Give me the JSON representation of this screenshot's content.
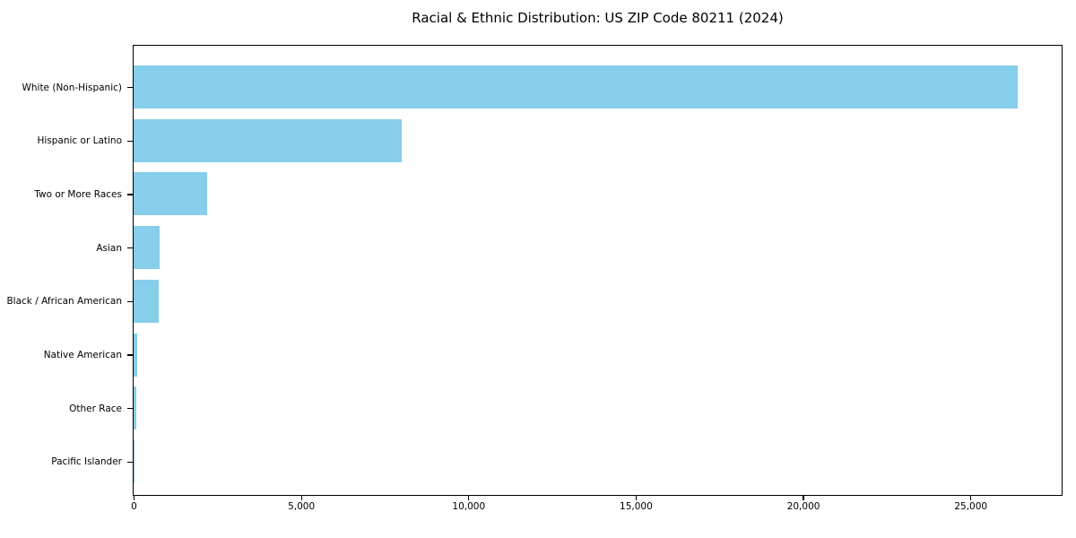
{
  "chart_data": {
    "type": "bar",
    "orientation": "horizontal",
    "title": "Racial & Ethnic Distribution: US ZIP Code 80211 (2024)",
    "categories": [
      "White (Non-Hispanic)",
      "Hispanic or Latino",
      "Two or More Races",
      "Asian",
      "Black / African American",
      "Native American",
      "Other Race",
      "Pacific Islander"
    ],
    "values": [
      26400,
      8000,
      2200,
      780,
      750,
      110,
      80,
      15
    ],
    "xlabel": "",
    "ylabel": "",
    "xlim": [
      0,
      27700
    ],
    "xticks": [
      0,
      5000,
      10000,
      15000,
      20000,
      25000
    ],
    "xtick_labels": [
      "0",
      "5,000",
      "10,000",
      "15,000",
      "20,000",
      "25,000"
    ],
    "bar_color": "#87CEEB",
    "grid": false,
    "legend_position": "none"
  }
}
